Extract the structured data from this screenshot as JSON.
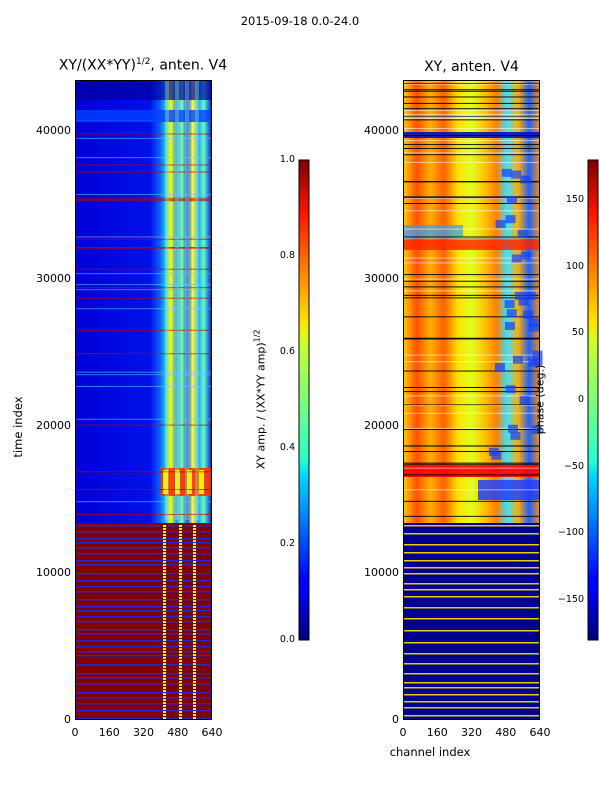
{
  "figure": {
    "suptitle": "2015-09-18 0.0-24.0"
  },
  "chart_data": [
    {
      "type": "heatmap",
      "title_main": "XY/(XX*YY)",
      "title_exp": "1/2",
      "title_tail": ", anten. V4",
      "ylabel": "time index",
      "xlabel": "",
      "xlim": [
        0,
        640
      ],
      "ylim": [
        0,
        43500
      ],
      "xticks": [
        "0",
        "160",
        "320",
        "480",
        "640"
      ],
      "yticks": [
        "0",
        "10000",
        "20000",
        "30000",
        "40000"
      ],
      "colormap": "jet",
      "colorbar": {
        "label_main": "XY amp. / (XX*YY amp)",
        "label_exp": "1/2",
        "range": [
          0.0,
          1.0
        ],
        "ticks": [
          "0.0",
          "0.2",
          "0.4",
          "0.6",
          "0.8",
          "1.0"
        ]
      }
    },
    {
      "type": "heatmap",
      "title": "XY, anten. V4",
      "ylabel": "",
      "xlabel": "channel index",
      "xlim": [
        0,
        640
      ],
      "ylim": [
        0,
        43500
      ],
      "xticks": [
        "0",
        "160",
        "320",
        "480",
        "640"
      ],
      "yticks": [
        "0",
        "10000",
        "20000",
        "30000",
        "40000"
      ],
      "colormap": "jet",
      "colorbar": {
        "label": "phase (deg.)",
        "range": [
          -180,
          180
        ],
        "ticks": [
          "−150",
          "−100",
          "−50",
          "0",
          "50",
          "100",
          "150"
        ]
      }
    }
  ]
}
